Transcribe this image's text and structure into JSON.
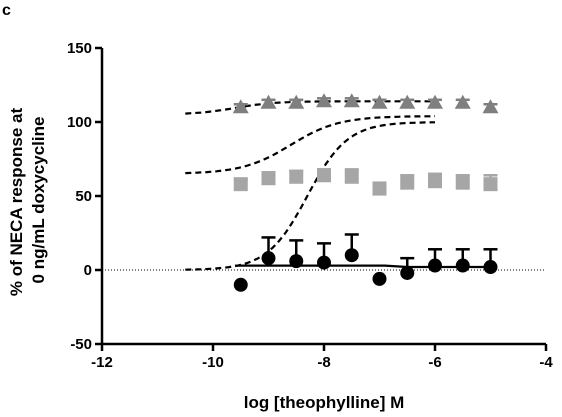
{
  "panel_label": "c",
  "chart_data": {
    "type": "scatter",
    "xlabel": "log [theophylline] M",
    "ylabel_line1": "% of NECA response at",
    "ylabel_line2": "0 ng/mL doxycycline",
    "xlim": [
      -12,
      -4
    ],
    "ylim": [
      -50,
      150
    ],
    "x_ticks": [
      -12,
      -10,
      -8,
      -6,
      -4
    ],
    "y_ticks": [
      -50,
      0,
      50,
      100,
      150
    ],
    "reference_line_y": 0,
    "series": [
      {
        "marker": "triangle",
        "color": "#7f7f7f",
        "x": [
          -9.5,
          -9.0,
          -8.5,
          -8.0,
          -7.5,
          -7.0,
          -6.5,
          -6.0,
          -5.5,
          -5.0
        ],
        "y": [
          110,
          113,
          113,
          114,
          114,
          113,
          113,
          113,
          113,
          110
        ],
        "err": [
          2,
          2,
          2,
          2,
          2,
          2,
          2,
          2,
          2,
          2
        ]
      },
      {
        "marker": "square",
        "color": "#a6a6a6",
        "x": [
          -9.5,
          -9.0,
          -8.5,
          -8.0,
          -7.5,
          -7.0,
          -6.5,
          -6.0,
          -5.5,
          -5.0
        ],
        "y": [
          58,
          62,
          63,
          64,
          63,
          55,
          59,
          60,
          59,
          58
        ],
        "err": [
          3,
          4,
          4,
          4,
          5,
          4,
          5,
          5,
          5,
          6
        ]
      },
      {
        "marker": "circle",
        "color": "#000000",
        "x": [
          -9.5,
          -9.0,
          -8.5,
          -8.0,
          -7.5,
          -7.0,
          -6.5,
          -6.0,
          -5.5,
          -5.0
        ],
        "y": [
          -10,
          8,
          6,
          5,
          10,
          -6,
          -2,
          3,
          3,
          2
        ],
        "err": [
          0,
          14,
          14,
          13,
          14,
          0,
          10,
          11,
          11,
          12
        ]
      }
    ],
    "fits": [
      {
        "style": "dashed",
        "bottom": 0,
        "top": 100,
        "ec50": -8.3,
        "hill": 1.2,
        "xrange": [
          -10.5,
          -6
        ]
      },
      {
        "style": "dashed",
        "bottom": 65,
        "top": 104,
        "ec50": -8.6,
        "hill": 1.0,
        "xrange": [
          -10.5,
          -6
        ]
      },
      {
        "style": "dashed",
        "bottom": 105,
        "top": 114,
        "ec50": -9.6,
        "hill": 1.2,
        "xrange": [
          -10.5,
          -6
        ]
      },
      {
        "style": "solid",
        "points": [
          [
            -9.6,
            3
          ],
          [
            -6.9,
            3
          ],
          [
            -6.5,
            2
          ],
          [
            -5.0,
            2
          ]
        ]
      }
    ]
  }
}
